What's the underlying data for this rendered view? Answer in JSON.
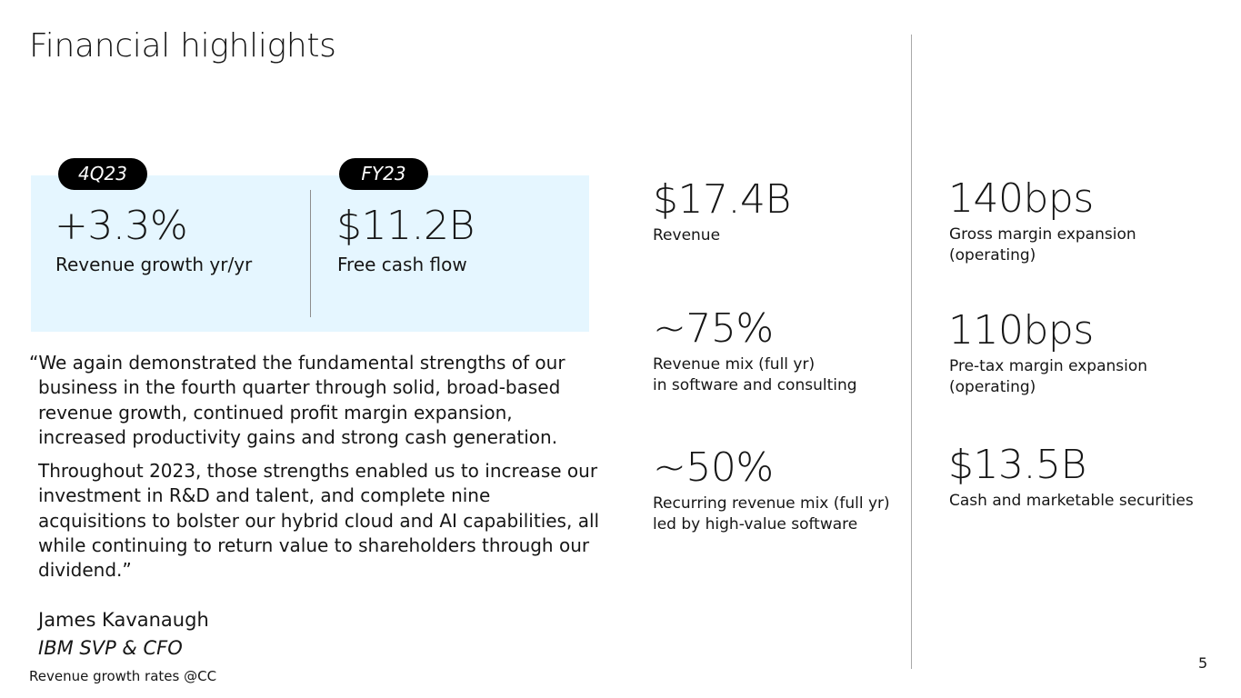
{
  "title": "Financial highlights",
  "highlights": {
    "q": {
      "tag": "4Q23",
      "value": "+3.3%",
      "label": "Revenue growth yr/yr"
    },
    "fy": {
      "tag": "FY23",
      "value": "$11.2B",
      "label": "Free cash flow"
    }
  },
  "quote": {
    "p1": "“We again demonstrated the fundamental strengths of our business in the fourth quarter through solid, broad-based revenue growth, continued profit margin expansion, increased productivity gains and strong cash generation.",
    "p2": "Throughout 2023, those strengths enabled us to increase our investment in R&D and talent, and complete nine acquisitions to bolster our hybrid cloud and AI capabilities, all while continuing to return value to shareholders through our dividend.”",
    "author": "James Kavanaugh",
    "role": "IBM SVP & CFO"
  },
  "metrics_left": [
    {
      "value": "$17.4B",
      "line1": "Revenue",
      "line2": ""
    },
    {
      "value": "~75%",
      "line1": "Revenue mix (full yr)",
      "line2": "in software and consulting"
    },
    {
      "value": "~50%",
      "line1": "Recurring revenue mix (full yr)",
      "line2": "led by high-value software"
    }
  ],
  "metrics_right": [
    {
      "value": "140bps",
      "line1": "Gross margin expansion",
      "line2": "(operating)"
    },
    {
      "value": "110bps",
      "line1": "Pre-tax margin expansion",
      "line2": "(operating)"
    },
    {
      "value": "$13.5B",
      "line1": "Cash and marketable securities",
      "line2": ""
    }
  ],
  "footnote": "Revenue growth rates @CC",
  "page_number": "5",
  "colors": {
    "highlight_box": "#e5f6ff",
    "pill": "#000000",
    "text": "#161616"
  }
}
